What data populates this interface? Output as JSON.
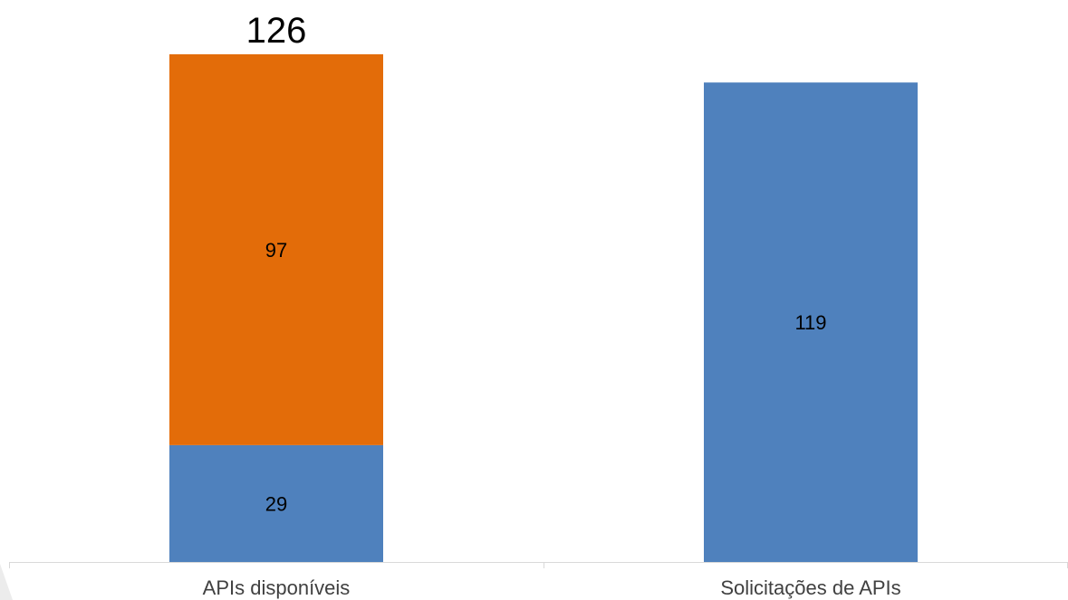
{
  "chart_data": {
    "type": "bar",
    "stacked": true,
    "categories": [
      "APIs disponíveis",
      "Solicitações de APIs"
    ],
    "series": [
      {
        "values": [
          29,
          119
        ],
        "color": "#4F81BD"
      },
      {
        "values": [
          97,
          0
        ],
        "color": "#E36C09"
      }
    ],
    "totals": [
      {
        "category": "APIs disponíveis",
        "label": "126"
      }
    ],
    "data_labels": [
      {
        "category": "APIs disponíveis",
        "series": 0,
        "label": "29"
      },
      {
        "category": "APIs disponíveis",
        "series": 1,
        "label": "97"
      },
      {
        "category": "Solicitações de APIs",
        "series": 0,
        "label": "119"
      }
    ],
    "ylim": [
      0,
      126
    ],
    "grid": false,
    "title": "",
    "xlabel": "",
    "ylabel": ""
  },
  "colors": {
    "axis": "#d9d9d9",
    "text": "#000000",
    "background": "#ffffff"
  }
}
